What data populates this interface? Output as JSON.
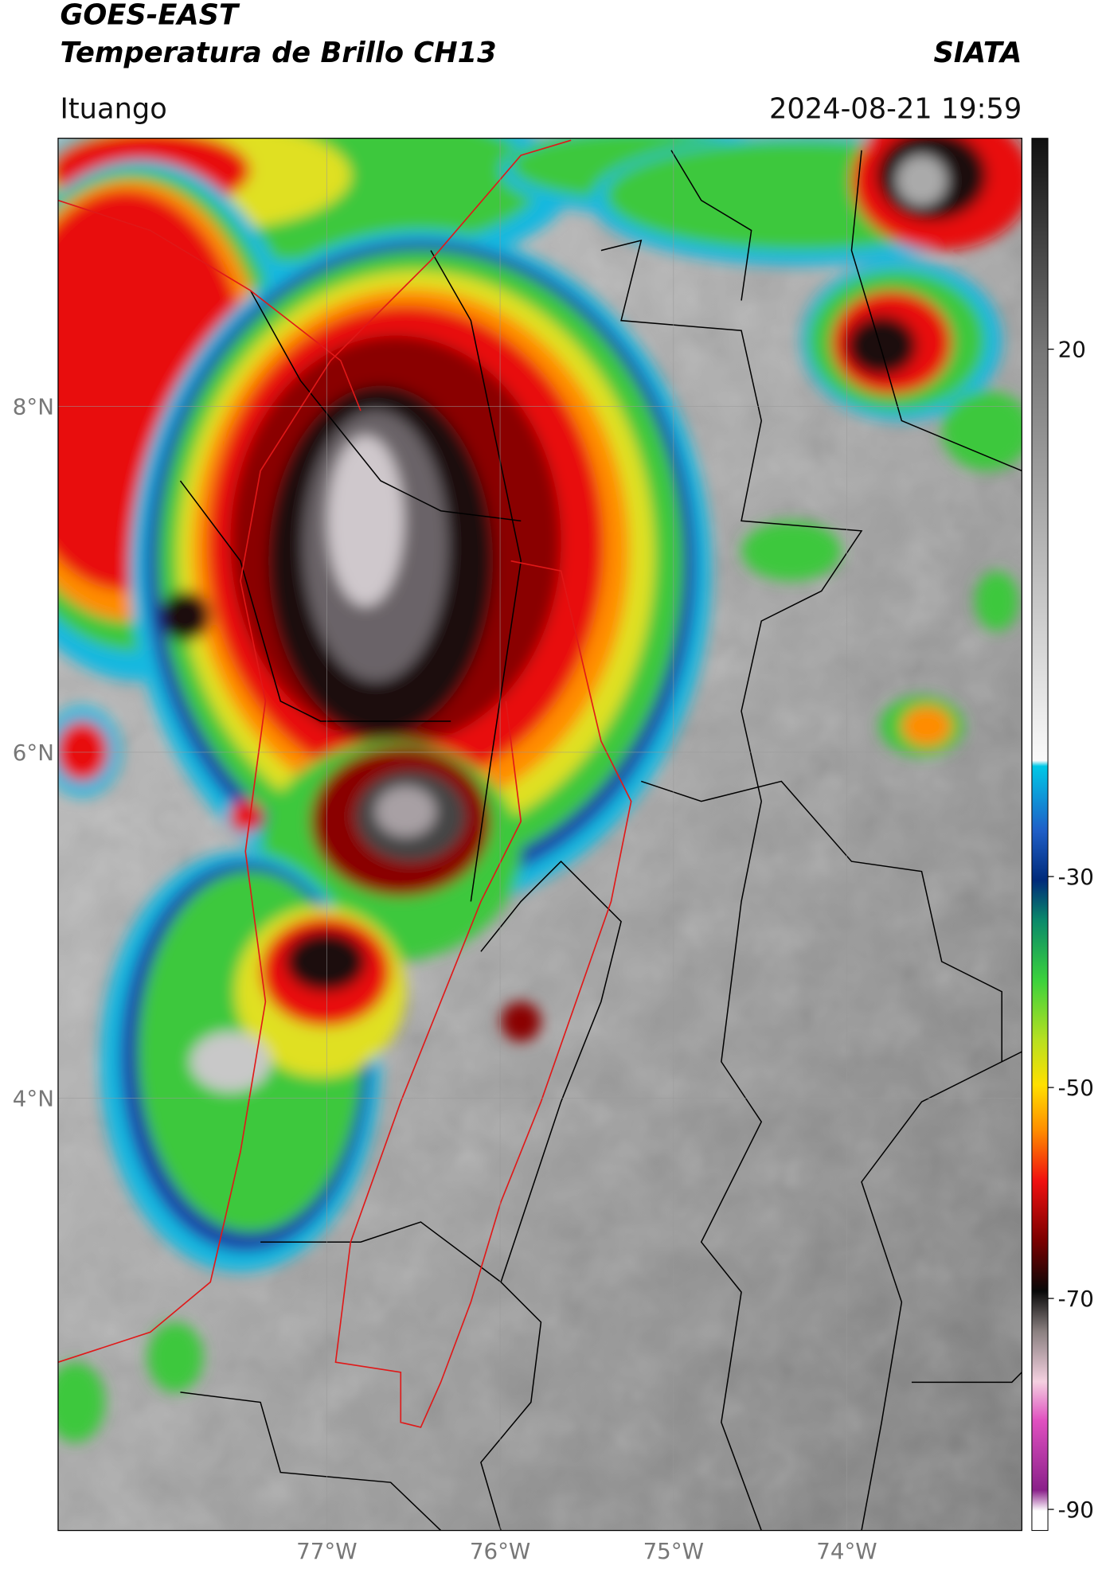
{
  "header": {
    "title": "GOES-EAST",
    "subtitle": "Temperatura de Brillo CH13",
    "source": "SIATA",
    "location": "Ituango",
    "datetime": "2024-08-21 19:59"
  },
  "map": {
    "lat_lim": [
      1.5,
      9.55
    ],
    "lon_lim": [
      -78.55,
      -72.99
    ],
    "lat_ticks": [
      {
        "value": 8,
        "label": "8°N"
      },
      {
        "value": 6,
        "label": "6°N"
      },
      {
        "value": 4,
        "label": "4°N"
      }
    ],
    "lon_ticks": [
      {
        "value": -77,
        "label": "77°W"
      },
      {
        "value": -76,
        "label": "76°W"
      },
      {
        "value": -75,
        "label": "75°W"
      },
      {
        "value": -74,
        "label": "74°W"
      }
    ]
  },
  "colorbar": {
    "lim": [
      -92,
      40
    ],
    "ticks": [
      20,
      -30,
      -50,
      -70,
      -90
    ]
  }
}
